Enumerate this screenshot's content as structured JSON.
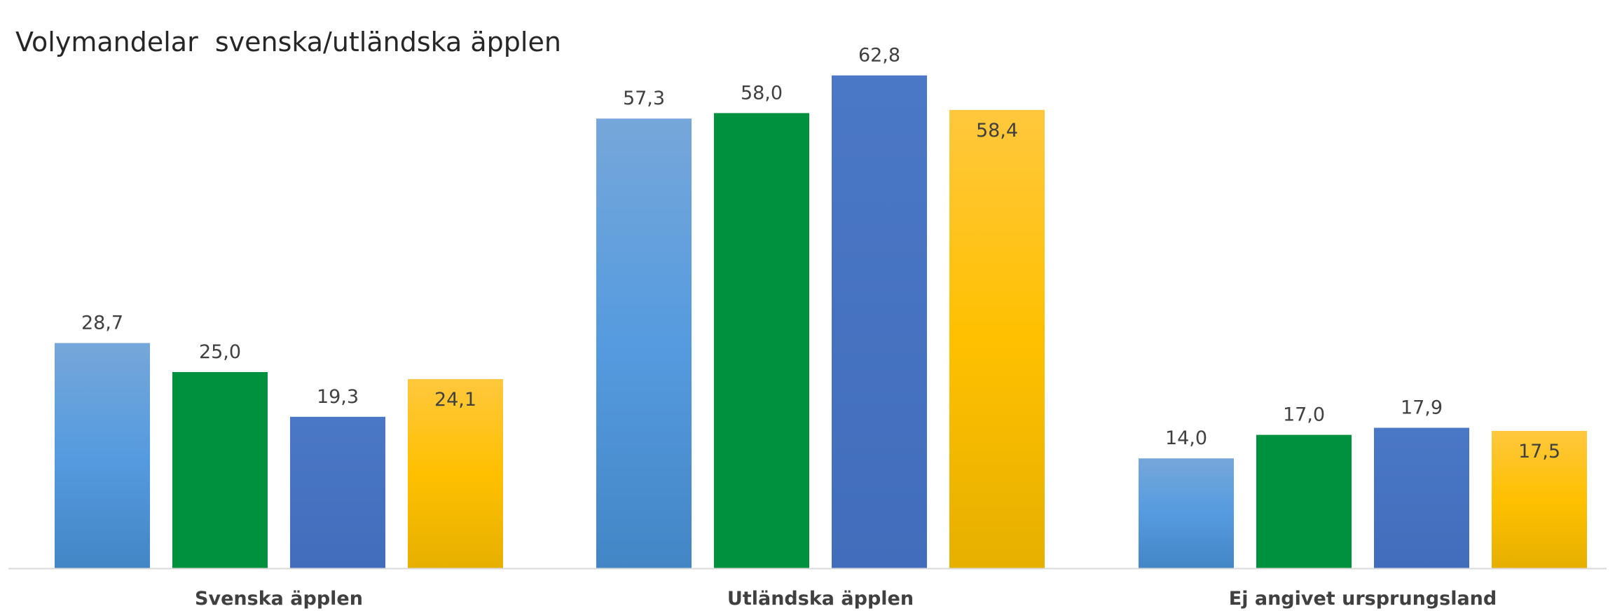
{
  "chart_data": {
    "type": "bar",
    "title": "Volymandelar  svenska/utländska äpplen",
    "categories": [
      "Svenska äpplen",
      "Utländska äpplen",
      "Ej angivet ursprungsland"
    ],
    "series": [
      {
        "values": [
          28.7,
          57.3,
          14.0
        ],
        "color": "#5B9BD5",
        "labels": [
          "28,7",
          "57,3",
          "14,0"
        ]
      },
      {
        "values": [
          25.0,
          58.0,
          17.0
        ],
        "color": "#00913F",
        "labels": [
          "25,0",
          "58,0",
          "17,0"
        ]
      },
      {
        "values": [
          19.3,
          62.8,
          17.9
        ],
        "color": "#4472C4",
        "labels": [
          "19,3",
          "62,8",
          "17,9"
        ]
      },
      {
        "values": [
          24.1,
          58.4,
          17.5
        ],
        "color": "#FFC000",
        "labels": [
          "24,1",
          "58,4",
          "17,5"
        ]
      }
    ],
    "ylim": [
      0,
      67.5
    ],
    "grid": false,
    "legend": "none",
    "xlabel": "",
    "ylabel": ""
  }
}
